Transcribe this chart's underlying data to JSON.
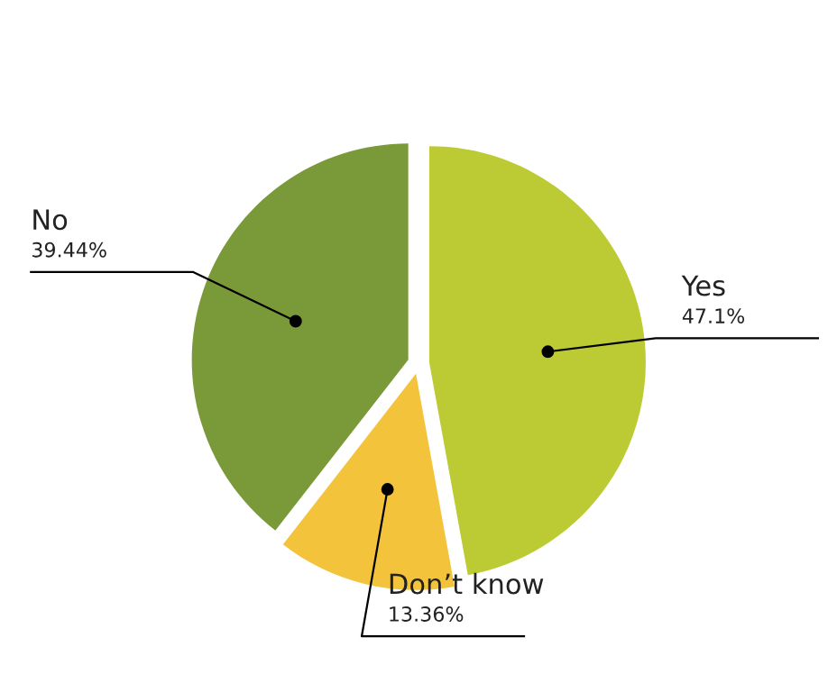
{
  "chart_data": {
    "type": "pie",
    "categories": [
      "Yes",
      "Don’t know",
      "No"
    ],
    "values": [
      47.1,
      13.36,
      39.44
    ],
    "value_labels": [
      "47.1%",
      "13.36%",
      "39.44%"
    ],
    "colors": [
      "#bccb33",
      "#f3c33b",
      "#7a9a3a"
    ],
    "legend": false
  }
}
